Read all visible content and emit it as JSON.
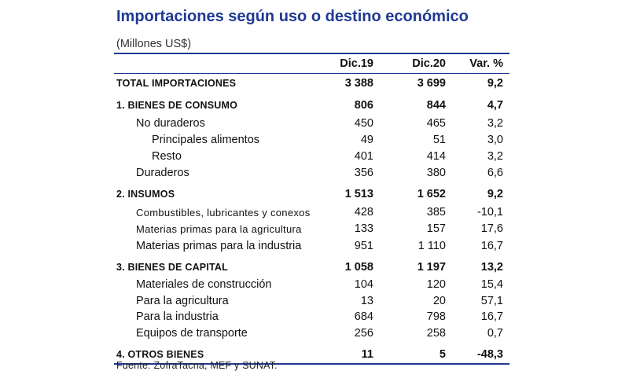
{
  "title": "Importaciones según uso o destino económico",
  "units": "(Millones US$)",
  "columns": [
    "Dic.19",
    "Dic.20",
    "Var. %"
  ],
  "rows": [
    {
      "label": "TOTAL IMPORTACIONES",
      "v1": "3 388",
      "v2": "3 699",
      "v3": "9,2"
    },
    {
      "label": "1. BIENES DE CONSUMO",
      "v1": "806",
      "v2": "844",
      "v3": "4,7"
    },
    {
      "label": "No duraderos",
      "v1": "450",
      "v2": "465",
      "v3": "3,2"
    },
    {
      "label": "Principales alimentos",
      "v1": "49",
      "v2": "51",
      "v3": "3,0"
    },
    {
      "label": "Resto",
      "v1": "401",
      "v2": "414",
      "v3": "3,2"
    },
    {
      "label": "Duraderos",
      "v1": "356",
      "v2": "380",
      "v3": "6,6"
    },
    {
      "label": "2. INSUMOS",
      "v1": "1 513",
      "v2": "1 652",
      "v3": "9,2"
    },
    {
      "label": "Combustibles, lubricantes y conexos",
      "v1": "428",
      "v2": "385",
      "v3": "-10,1"
    },
    {
      "label": "Materias primas para la agricultura",
      "v1": "133",
      "v2": "157",
      "v3": "17,6"
    },
    {
      "label": "Materias primas para la industria",
      "v1": "951",
      "v2": "1 110",
      "v3": "16,7"
    },
    {
      "label": "3. BIENES DE CAPITAL",
      "v1": "1 058",
      "v2": "1 197",
      "v3": "13,2"
    },
    {
      "label": "Materiales de construcción",
      "v1": "104",
      "v2": "120",
      "v3": "15,4"
    },
    {
      "label": "Para la agricultura",
      "v1": "13",
      "v2": "20",
      "v3": "57,1"
    },
    {
      "label": "Para la industria",
      "v1": "684",
      "v2": "798",
      "v3": "16,7"
    },
    {
      "label": "Equipos de transporte",
      "v1": "256",
      "v2": "258",
      "v3": "0,7"
    },
    {
      "label": "4. OTROS BIENES",
      "v1": "11",
      "v2": "5",
      "v3": "-48,3"
    }
  ],
  "source": "Fuente: ZofraTacna, MEF y SUNAT."
}
